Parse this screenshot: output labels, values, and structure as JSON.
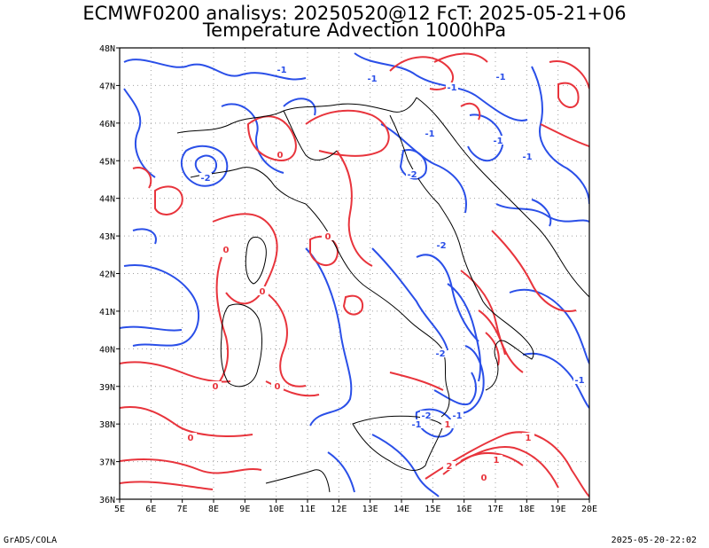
{
  "header": {
    "line1": "ECMWF0200 analisys: 20250520@12 FcT: 2025-05-21+06",
    "line2": "Temperature Advection 1000hPa"
  },
  "axes": {
    "lon_labels": [
      "5E",
      "6E",
      "7E",
      "8E",
      "9E",
      "10E",
      "11E",
      "12E",
      "13E",
      "14E",
      "15E",
      "16E",
      "17E",
      "18E",
      "19E",
      "20E"
    ],
    "lat_labels": [
      "48N",
      "47N",
      "46N",
      "45N",
      "44N",
      "43N",
      "42N",
      "41N",
      "40N",
      "39N",
      "38N",
      "37N",
      "36N"
    ],
    "lon_range": [
      5,
      20
    ],
    "lat_range": [
      36,
      48
    ],
    "grid": "dotted"
  },
  "colors": {
    "positive": "#e8343c",
    "negative": "#2a4fe8",
    "coast": "#000000",
    "grid": "#a0a0a0"
  },
  "contour_labels": [
    {
      "text": "-1",
      "color": "negative"
    },
    {
      "text": "-1",
      "color": "negative"
    },
    {
      "text": "-1",
      "color": "negative"
    },
    {
      "text": "-2",
      "color": "negative"
    },
    {
      "text": "-1",
      "color": "negative"
    },
    {
      "text": "-1",
      "color": "negative"
    },
    {
      "text": "-1",
      "color": "negative"
    },
    {
      "text": "-2",
      "color": "negative"
    },
    {
      "text": "-2",
      "color": "negative"
    },
    {
      "text": "-1",
      "color": "negative"
    },
    {
      "text": "-2",
      "color": "negative"
    },
    {
      "text": "-1",
      "color": "negative"
    },
    {
      "text": "-1",
      "color": "negative"
    },
    {
      "text": "-2",
      "color": "negative"
    },
    {
      "text": "-1",
      "color": "negative"
    },
    {
      "text": "0",
      "color": "positive"
    },
    {
      "text": "0",
      "color": "positive"
    },
    {
      "text": "0",
      "color": "positive"
    },
    {
      "text": "0",
      "color": "positive"
    },
    {
      "text": "0",
      "color": "positive"
    },
    {
      "text": "0",
      "color": "positive"
    },
    {
      "text": "0",
      "color": "positive"
    },
    {
      "text": "1",
      "color": "positive"
    },
    {
      "text": "1",
      "color": "positive"
    },
    {
      "text": "1",
      "color": "positive"
    },
    {
      "text": "2",
      "color": "positive"
    },
    {
      "text": "0",
      "color": "positive"
    }
  ],
  "footer": {
    "left": "GrADS/COLA",
    "right": "2025-05-20-22:02"
  }
}
